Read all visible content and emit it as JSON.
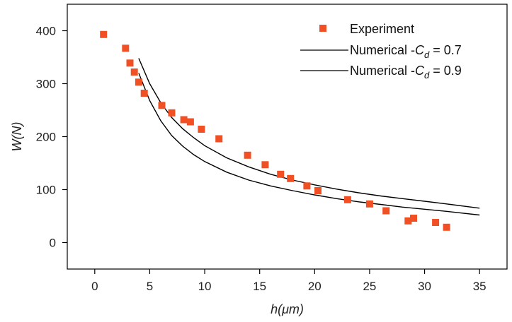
{
  "chart_data": {
    "type": "scatter",
    "xlabel": "h(μm)",
    "ylabel": "W(N)",
    "xlim": [
      -2.5,
      37.5
    ],
    "ylim": [
      -50,
      450
    ],
    "xticks": [
      0,
      5,
      10,
      15,
      20,
      25,
      30,
      35
    ],
    "yticks": [
      0,
      100,
      200,
      300,
      400
    ],
    "grid": false,
    "legend_position": "top-right",
    "colors": {
      "experiment": "#f05024",
      "numerical": "#000000",
      "axis": "#000000"
    },
    "legend": [
      {
        "prefix": "Numerical -",
        "var": "C",
        "sub": "d",
        "suffix": " = 0.7"
      },
      {
        "prefix": "Numerical -",
        "var": "C",
        "sub": "d",
        "suffix": " = 0.9"
      }
    ],
    "series": [
      {
        "name": "Experiment",
        "kind": "scatter",
        "x": [
          0.8,
          2.8,
          3.2,
          3.6,
          4.0,
          4.5,
          6.1,
          7.0,
          8.1,
          8.7,
          9.7,
          11.3,
          13.9,
          15.5,
          16.9,
          17.8,
          19.3,
          20.3,
          23.0,
          25.0,
          26.5,
          28.5,
          29.0,
          31.0,
          32.0
        ],
        "y": [
          393,
          367,
          339,
          322,
          303,
          282,
          259,
          245,
          232,
          228,
          214,
          196,
          165,
          147,
          129,
          121,
          107,
          98,
          81,
          73,
          60,
          41,
          46,
          38,
          29
        ]
      },
      {
        "name": "Numerical -Cd = 0.7",
        "kind": "line",
        "x": [
          4,
          5,
          6,
          7,
          8,
          9,
          10,
          12,
          14,
          16,
          18,
          20,
          22,
          24,
          26,
          28,
          30,
          32,
          35
        ],
        "y": [
          348,
          300,
          264,
          236,
          215,
          198,
          183,
          160,
          143,
          129,
          118,
          109,
          101,
          94,
          88,
          83,
          78,
          73,
          65
        ]
      },
      {
        "name": "Numerical -Cd = 0.9",
        "kind": "line",
        "x": [
          4,
          5,
          6,
          7,
          8,
          9,
          10,
          12,
          14,
          16,
          18,
          20,
          22,
          24,
          26,
          28,
          30,
          32,
          35
        ],
        "y": [
          320,
          268,
          230,
          202,
          182,
          166,
          153,
          133,
          118,
          107,
          98,
          90,
          83,
          77,
          72,
          67,
          63,
          59,
          52
        ]
      }
    ]
  }
}
